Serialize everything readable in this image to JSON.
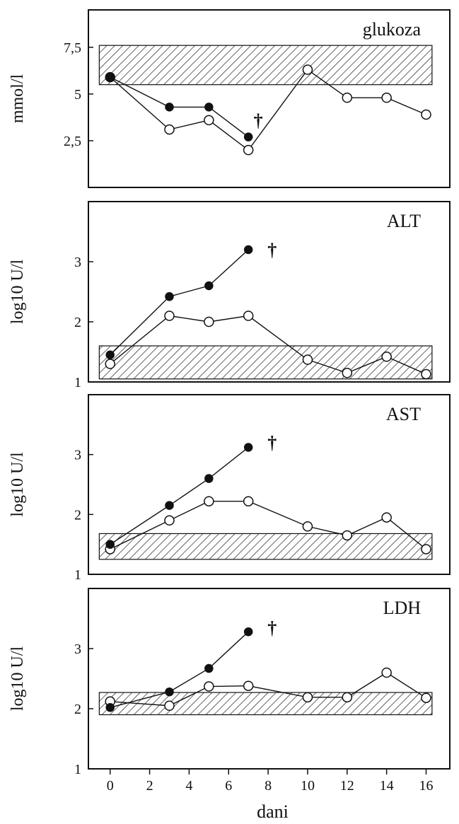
{
  "chart_data": [
    {
      "type": "line",
      "title": "glukoza",
      "ylabel": "mmol/l",
      "yticks": [
        "2,5",
        "5",
        "7,5"
      ],
      "ytick_values": [
        2.5,
        5,
        7.5
      ],
      "ylim": [
        0,
        9.5
      ],
      "reference_range": [
        5.5,
        7.6
      ],
      "death_marker": {
        "symbol": "†",
        "x": 7.5,
        "y": 3.6
      },
      "series": [
        {
          "marker": "filled",
          "x": [
            0,
            3,
            5,
            7
          ],
          "y": [
            5.9,
            4.3,
            4.3,
            2.7
          ]
        },
        {
          "marker": "open",
          "x": [
            0,
            3,
            5,
            7,
            10,
            12,
            14,
            16
          ],
          "y": [
            5.9,
            3.1,
            3.6,
            2.0,
            6.3,
            4.8,
            4.8,
            3.9
          ]
        }
      ]
    },
    {
      "type": "line",
      "title": "ALT",
      "ylabel": "log10 U/l",
      "yticks": [
        "1",
        "2",
        "3"
      ],
      "ytick_values": [
        1,
        2,
        3
      ],
      "ylim": [
        1,
        4
      ],
      "reference_range": [
        1.05,
        1.6
      ],
      "death_marker": {
        "symbol": "†",
        "x": 8.2,
        "y": 3.2
      },
      "series": [
        {
          "marker": "filled",
          "x": [
            0,
            3,
            5,
            7
          ],
          "y": [
            1.45,
            2.42,
            2.6,
            3.2
          ]
        },
        {
          "marker": "open",
          "x": [
            0,
            3,
            5,
            7,
            10,
            12,
            14,
            16
          ],
          "y": [
            1.3,
            2.1,
            2.0,
            2.1,
            1.37,
            1.15,
            1.42,
            1.13
          ]
        }
      ]
    },
    {
      "type": "line",
      "title": "AST",
      "ylabel": "log10 U/l",
      "yticks": [
        "1",
        "2",
        "3"
      ],
      "ytick_values": [
        1,
        2,
        3
      ],
      "ylim": [
        1,
        4
      ],
      "reference_range": [
        1.25,
        1.68
      ],
      "death_marker": {
        "symbol": "†",
        "x": 8.2,
        "y": 3.2
      },
      "series": [
        {
          "marker": "filled",
          "x": [
            0,
            3,
            5,
            7
          ],
          "y": [
            1.5,
            2.15,
            2.6,
            3.12
          ]
        },
        {
          "marker": "open",
          "x": [
            0,
            3,
            5,
            7,
            10,
            12,
            14,
            16
          ],
          "y": [
            1.42,
            1.9,
            2.22,
            2.22,
            1.8,
            1.65,
            1.95,
            1.42
          ]
        }
      ]
    },
    {
      "type": "line",
      "title": "LDH",
      "ylabel": "log10 U/l",
      "yticks": [
        "1",
        "2",
        "3"
      ],
      "ytick_values": [
        1,
        2,
        3
      ],
      "ylim": [
        1,
        4
      ],
      "reference_range": [
        1.9,
        2.27
      ],
      "death_marker": {
        "symbol": "†",
        "x": 8.2,
        "y": 3.35
      },
      "series": [
        {
          "marker": "filled",
          "x": [
            0,
            3,
            5,
            7
          ],
          "y": [
            2.02,
            2.28,
            2.67,
            3.28
          ]
        },
        {
          "marker": "open",
          "x": [
            0,
            3,
            5,
            7,
            10,
            12,
            14,
            16
          ],
          "y": [
            2.12,
            2.05,
            2.37,
            2.38,
            2.19,
            2.19,
            2.6,
            2.18
          ]
        }
      ],
      "xlabel": "dani",
      "xticks": [
        0,
        2,
        4,
        6,
        8,
        10,
        12,
        14,
        16
      ],
      "xlim": [
        -1.1,
        17.2
      ]
    }
  ]
}
